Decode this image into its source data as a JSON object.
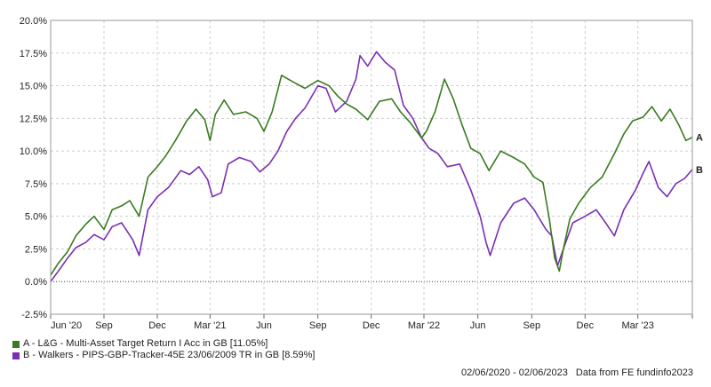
{
  "chart_data": {
    "type": "line",
    "x_ticks": [
      "Jun '20",
      "Sep",
      "Dec",
      "Mar '21",
      "Jun",
      "Sep",
      "Dec",
      "Mar '22",
      "Jun",
      "Sep",
      "Dec",
      "Mar '23"
    ],
    "y_ticks": [
      "20.0%",
      "17.5%",
      "15.0%",
      "12.5%",
      "10.0%",
      "7.5%",
      "5.0%",
      "2.5%",
      "0.0%",
      "-2.5%"
    ],
    "ylim": [
      -2.5,
      20.0
    ],
    "xlim": [
      "2020-06-02",
      "2023-06-02"
    ],
    "grid": true,
    "series": [
      {
        "name": "A - L&G - Multi-Asset Target Return I Acc in GB [11.05%]",
        "end_label": "A",
        "color": "#3a7a20",
        "points": [
          [
            "2020-06-02",
            0.5
          ],
          [
            "2020-06-15",
            1.4
          ],
          [
            "2020-07-01",
            2.3
          ],
          [
            "2020-07-15",
            3.5
          ],
          [
            "2020-08-01",
            4.4
          ],
          [
            "2020-08-15",
            5.0
          ],
          [
            "2020-09-01",
            4.0
          ],
          [
            "2020-09-15",
            5.5
          ],
          [
            "2020-10-01",
            5.8
          ],
          [
            "2020-10-15",
            6.2
          ],
          [
            "2020-10-31",
            5.0
          ],
          [
            "2020-11-15",
            8.0
          ],
          [
            "2020-12-01",
            8.8
          ],
          [
            "2020-12-15",
            9.6
          ],
          [
            "2021-01-01",
            10.8
          ],
          [
            "2021-01-20",
            12.3
          ],
          [
            "2021-02-05",
            13.2
          ],
          [
            "2021-02-20",
            12.4
          ],
          [
            "2021-03-01",
            10.8
          ],
          [
            "2021-03-10",
            12.8
          ],
          [
            "2021-03-25",
            13.9
          ],
          [
            "2021-04-10",
            12.8
          ],
          [
            "2021-05-01",
            13.0
          ],
          [
            "2021-05-20",
            12.5
          ],
          [
            "2021-06-01",
            11.5
          ],
          [
            "2021-06-15",
            13.0
          ],
          [
            "2021-07-01",
            15.8
          ],
          [
            "2021-07-20",
            15.3
          ],
          [
            "2021-08-10",
            14.8
          ],
          [
            "2021-09-01",
            15.4
          ],
          [
            "2021-09-20",
            15.0
          ],
          [
            "2021-10-05",
            14.2
          ],
          [
            "2021-10-20",
            13.6
          ],
          [
            "2021-11-05",
            13.2
          ],
          [
            "2021-11-25",
            12.4
          ],
          [
            "2021-12-15",
            13.8
          ],
          [
            "2022-01-05",
            14.0
          ],
          [
            "2022-01-20",
            13.0
          ],
          [
            "2022-02-05",
            12.2
          ],
          [
            "2022-02-25",
            11.0
          ],
          [
            "2022-03-05",
            11.5
          ],
          [
            "2022-03-20",
            13.0
          ],
          [
            "2022-04-05",
            15.5
          ],
          [
            "2022-04-20",
            14.0
          ],
          [
            "2022-05-05",
            12.0
          ],
          [
            "2022-05-20",
            10.2
          ],
          [
            "2022-06-05",
            9.8
          ],
          [
            "2022-06-20",
            8.5
          ],
          [
            "2022-07-10",
            10.0
          ],
          [
            "2022-08-01",
            9.5
          ],
          [
            "2022-08-20",
            9.0
          ],
          [
            "2022-09-05",
            8.0
          ],
          [
            "2022-09-20",
            7.6
          ],
          [
            "2022-10-01",
            4.8
          ],
          [
            "2022-10-10",
            1.8
          ],
          [
            "2022-10-18",
            0.8
          ],
          [
            "2022-10-25",
            2.5
          ],
          [
            "2022-11-05",
            4.8
          ],
          [
            "2022-11-20",
            6.0
          ],
          [
            "2022-12-10",
            7.2
          ],
          [
            "2022-12-30",
            8.0
          ],
          [
            "2023-01-20",
            9.8
          ],
          [
            "2023-02-05",
            11.3
          ],
          [
            "2023-02-20",
            12.3
          ],
          [
            "2023-03-10",
            12.6
          ],
          [
            "2023-03-25",
            13.4
          ],
          [
            "2023-04-10",
            12.3
          ],
          [
            "2023-04-25",
            13.2
          ],
          [
            "2023-05-10",
            12.0
          ],
          [
            "2023-05-22",
            10.8
          ],
          [
            "2023-06-02",
            11.05
          ]
        ]
      },
      {
        "name": "B - Walkers - PIPS-GBP-Tracker-45E 23/06/2009 TR in GB [8.59%]",
        "end_label": "B",
        "color": "#7a2fb3",
        "points": [
          [
            "2020-06-02",
            0.0
          ],
          [
            "2020-06-15",
            0.8
          ],
          [
            "2020-07-01",
            1.8
          ],
          [
            "2020-07-15",
            2.6
          ],
          [
            "2020-08-01",
            3.0
          ],
          [
            "2020-08-15",
            3.6
          ],
          [
            "2020-09-01",
            3.2
          ],
          [
            "2020-09-15",
            4.2
          ],
          [
            "2020-10-01",
            4.5
          ],
          [
            "2020-10-20",
            3.2
          ],
          [
            "2020-10-31",
            2.0
          ],
          [
            "2020-11-15",
            5.5
          ],
          [
            "2020-12-01",
            6.5
          ],
          [
            "2020-12-20",
            7.2
          ],
          [
            "2021-01-10",
            8.5
          ],
          [
            "2021-01-25",
            8.2
          ],
          [
            "2021-02-10",
            8.8
          ],
          [
            "2021-02-25",
            7.8
          ],
          [
            "2021-03-05",
            6.5
          ],
          [
            "2021-03-20",
            6.8
          ],
          [
            "2021-04-01",
            9.0
          ],
          [
            "2021-04-20",
            9.5
          ],
          [
            "2021-05-10",
            9.2
          ],
          [
            "2021-05-25",
            8.4
          ],
          [
            "2021-06-10",
            9.0
          ],
          [
            "2021-06-25",
            10.0
          ],
          [
            "2021-07-10",
            11.5
          ],
          [
            "2021-07-25",
            12.5
          ],
          [
            "2021-08-10",
            13.3
          ],
          [
            "2021-09-01",
            15.0
          ],
          [
            "2021-09-15",
            14.8
          ],
          [
            "2021-10-01",
            13.0
          ],
          [
            "2021-10-20",
            13.8
          ],
          [
            "2021-11-05",
            15.5
          ],
          [
            "2021-11-12",
            17.3
          ],
          [
            "2021-11-25",
            16.5
          ],
          [
            "2021-12-10",
            17.6
          ],
          [
            "2021-12-25",
            16.8
          ],
          [
            "2022-01-10",
            16.2
          ],
          [
            "2022-01-25",
            13.5
          ],
          [
            "2022-02-10",
            12.5
          ],
          [
            "2022-02-25",
            11.0
          ],
          [
            "2022-03-10",
            10.2
          ],
          [
            "2022-03-25",
            9.8
          ],
          [
            "2022-04-10",
            8.8
          ],
          [
            "2022-05-01",
            9.0
          ],
          [
            "2022-05-20",
            7.0
          ],
          [
            "2022-06-05",
            5.0
          ],
          [
            "2022-06-15",
            3.0
          ],
          [
            "2022-06-22",
            2.0
          ],
          [
            "2022-07-10",
            4.5
          ],
          [
            "2022-08-01",
            6.0
          ],
          [
            "2022-08-20",
            6.4
          ],
          [
            "2022-09-05",
            5.5
          ],
          [
            "2022-09-25",
            4.0
          ],
          [
            "2022-10-05",
            3.5
          ],
          [
            "2022-10-15",
            1.2
          ],
          [
            "2022-10-25",
            2.5
          ],
          [
            "2022-11-10",
            4.5
          ],
          [
            "2022-12-01",
            5.0
          ],
          [
            "2022-12-20",
            5.5
          ],
          [
            "2023-01-05",
            4.5
          ],
          [
            "2023-01-20",
            3.5
          ],
          [
            "2023-02-05",
            5.5
          ],
          [
            "2023-02-25",
            7.0
          ],
          [
            "2023-03-10",
            8.3
          ],
          [
            "2023-03-20",
            9.2
          ],
          [
            "2023-04-05",
            7.2
          ],
          [
            "2023-04-20",
            6.5
          ],
          [
            "2023-05-05",
            7.5
          ],
          [
            "2023-05-20",
            7.9
          ],
          [
            "2023-06-02",
            8.59
          ]
        ]
      }
    ]
  },
  "footer": {
    "date_range": "02/06/2020 - 02/06/2023",
    "source": "Data from FE fundinfo2023"
  }
}
